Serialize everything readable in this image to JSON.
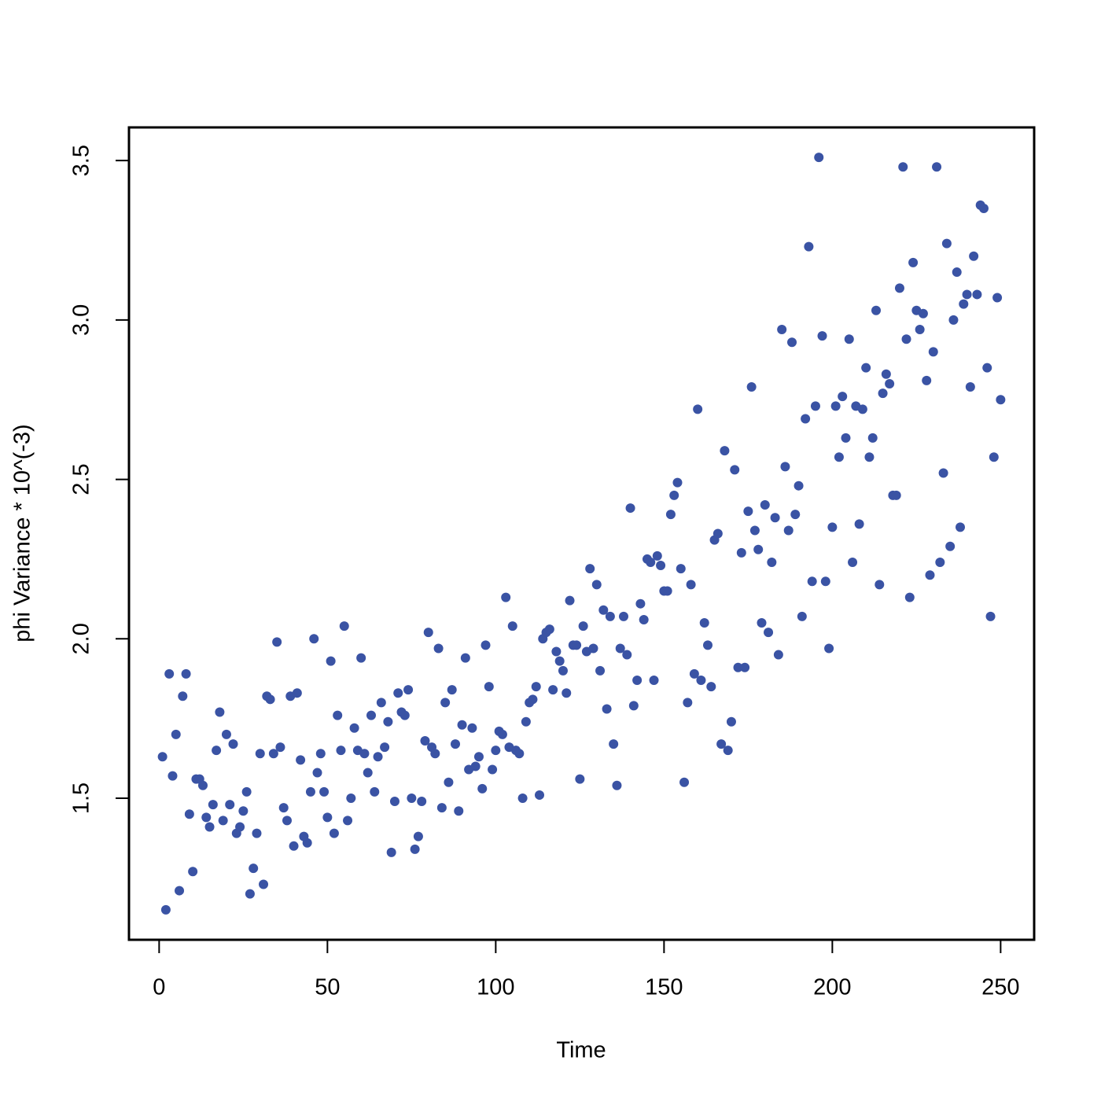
{
  "chart_data": {
    "type": "scatter",
    "xlabel": "Time",
    "ylabel": "phi Variance * 10^(-3)",
    "color": "#3a53a4",
    "x": [
      1,
      2,
      3,
      4,
      5,
      6,
      7,
      8,
      9,
      10,
      11,
      12,
      13,
      14,
      15,
      16,
      17,
      18,
      19,
      20,
      21,
      22,
      23,
      24,
      25,
      26,
      27,
      28,
      29,
      30,
      31,
      32,
      33,
      34,
      35,
      36,
      37,
      38,
      39,
      40,
      41,
      42,
      43,
      44,
      45,
      46,
      47,
      48,
      49,
      50,
      51,
      52,
      53,
      54,
      55,
      56,
      57,
      58,
      59,
      60,
      61,
      62,
      63,
      64,
      65,
      66,
      67,
      68,
      69,
      70,
      71,
      72,
      73,
      74,
      75,
      76,
      77,
      78,
      79,
      80,
      81,
      82,
      83,
      84,
      85,
      86,
      87,
      88,
      89,
      90,
      91,
      92,
      93,
      94,
      95,
      96,
      97,
      98,
      99,
      100,
      101,
      102,
      103,
      104,
      105,
      106,
      107,
      108,
      109,
      110,
      111,
      112,
      113,
      114,
      115,
      116,
      117,
      118,
      119,
      120,
      121,
      122,
      123,
      124,
      125,
      126,
      127,
      128,
      129,
      130,
      131,
      132,
      133,
      134,
      135,
      136,
      137,
      138,
      139,
      140,
      141,
      142,
      143,
      144,
      145,
      146,
      147,
      148,
      149,
      150,
      151,
      152,
      153,
      154,
      155,
      156,
      157,
      158,
      159,
      160,
      161,
      162,
      163,
      164,
      165,
      166,
      167,
      168,
      169,
      170,
      171,
      172,
      173,
      174,
      175,
      176,
      177,
      178,
      179,
      180,
      181,
      182,
      183,
      184,
      185,
      186,
      187,
      188,
      189,
      190,
      191,
      192,
      193,
      194,
      195,
      196,
      197,
      198,
      199,
      200,
      201,
      202,
      203,
      204,
      205,
      206,
      207,
      208,
      209,
      210,
      211,
      212,
      213,
      214,
      215,
      216,
      217,
      218,
      219,
      220,
      221,
      222,
      223,
      224,
      225,
      226,
      227,
      228,
      229,
      230,
      231,
      232,
      233,
      234,
      235,
      236,
      237,
      238,
      239,
      240,
      241,
      242,
      243,
      244,
      245,
      246,
      247,
      248,
      249,
      250
    ],
    "values": [
      1.63,
      1.15,
      1.89,
      1.57,
      1.7,
      1.21,
      1.82,
      1.89,
      1.45,
      1.27,
      1.56,
      1.56,
      1.54,
      1.44,
      1.41,
      1.48,
      1.65,
      1.77,
      1.43,
      1.7,
      1.48,
      1.67,
      1.39,
      1.41,
      1.46,
      1.52,
      1.2,
      1.28,
      1.39,
      1.64,
      1.23,
      1.82,
      1.81,
      1.64,
      1.99,
      1.66,
      1.47,
      1.43,
      1.82,
      1.35,
      1.83,
      1.62,
      1.38,
      1.36,
      1.52,
      2.0,
      1.58,
      1.64,
      1.52,
      1.44,
      1.93,
      1.39,
      1.76,
      1.65,
      2.04,
      1.43,
      1.5,
      1.72,
      1.65,
      1.94,
      1.64,
      1.58,
      1.76,
      1.52,
      1.63,
      1.8,
      1.66,
      1.74,
      1.33,
      1.49,
      1.83,
      1.77,
      1.76,
      1.84,
      1.5,
      1.34,
      1.38,
      1.49,
      1.68,
      2.02,
      1.66,
      1.64,
      1.97,
      1.47,
      1.8,
      1.55,
      1.84,
      1.67,
      1.46,
      1.73,
      1.94,
      1.59,
      1.72,
      1.6,
      1.63,
      1.53,
      1.98,
      1.85,
      1.59,
      1.65,
      1.71,
      1.7,
      2.13,
      1.66,
      2.04,
      1.65,
      1.64,
      1.5,
      1.74,
      1.8,
      1.81,
      1.85,
      1.51,
      2.0,
      2.02,
      2.03,
      1.84,
      1.96,
      1.93,
      1.9,
      1.83,
      2.12,
      1.98,
      1.98,
      1.56,
      2.04,
      1.96,
      2.22,
      1.97,
      2.17,
      1.9,
      2.09,
      1.78,
      2.07,
      1.67,
      1.54,
      1.97,
      2.07,
      1.95,
      2.41,
      1.79,
      1.87,
      2.11,
      2.06,
      2.25,
      2.24,
      1.87,
      2.26,
      2.23,
      2.15,
      2.15,
      2.39,
      2.45,
      2.49,
      2.22,
      1.55,
      1.8,
      2.17,
      1.89,
      2.72,
      1.87,
      2.05,
      1.98,
      1.85,
      2.31,
      2.33,
      1.67,
      2.59,
      1.65,
      1.74,
      2.53,
      1.91,
      2.27,
      1.91,
      2.4,
      2.79,
      2.34,
      2.28,
      2.05,
      2.42,
      2.02,
      2.24,
      2.38,
      1.95,
      2.97,
      2.54,
      2.34,
      2.93,
      2.39,
      2.48,
      2.07,
      2.69,
      3.23,
      2.18,
      2.73,
      3.51,
      2.95,
      2.18,
      1.97,
      2.35,
      2.73,
      2.57,
      2.76,
      2.63,
      2.94,
      2.24,
      2.73,
      2.36,
      2.72,
      2.85,
      2.57,
      2.63,
      3.03,
      2.17,
      2.77,
      2.83,
      2.8,
      2.45,
      2.45,
      3.1,
      3.48,
      2.94,
      2.13,
      3.18,
      3.03,
      2.97,
      3.02,
      2.81,
      2.2,
      2.9,
      3.48,
      2.24,
      2.52,
      3.24,
      2.29,
      3.0,
      3.15,
      2.35,
      3.05,
      3.08,
      2.79,
      3.2,
      3.08,
      3.36,
      3.35,
      2.85,
      2.07,
      2.57,
      3.07,
      2.75
    ],
    "xlim": [
      -8.96,
      259.96
    ],
    "ylim": [
      1.056,
      3.604
    ],
    "xticks": [
      0,
      50,
      100,
      150,
      200,
      250
    ],
    "yticks": [
      1.5,
      {
        "value": 2,
        "label": "2.0"
      },
      2.5,
      {
        "value": 3,
        "label": "3.0"
      },
      3.5
    ]
  }
}
